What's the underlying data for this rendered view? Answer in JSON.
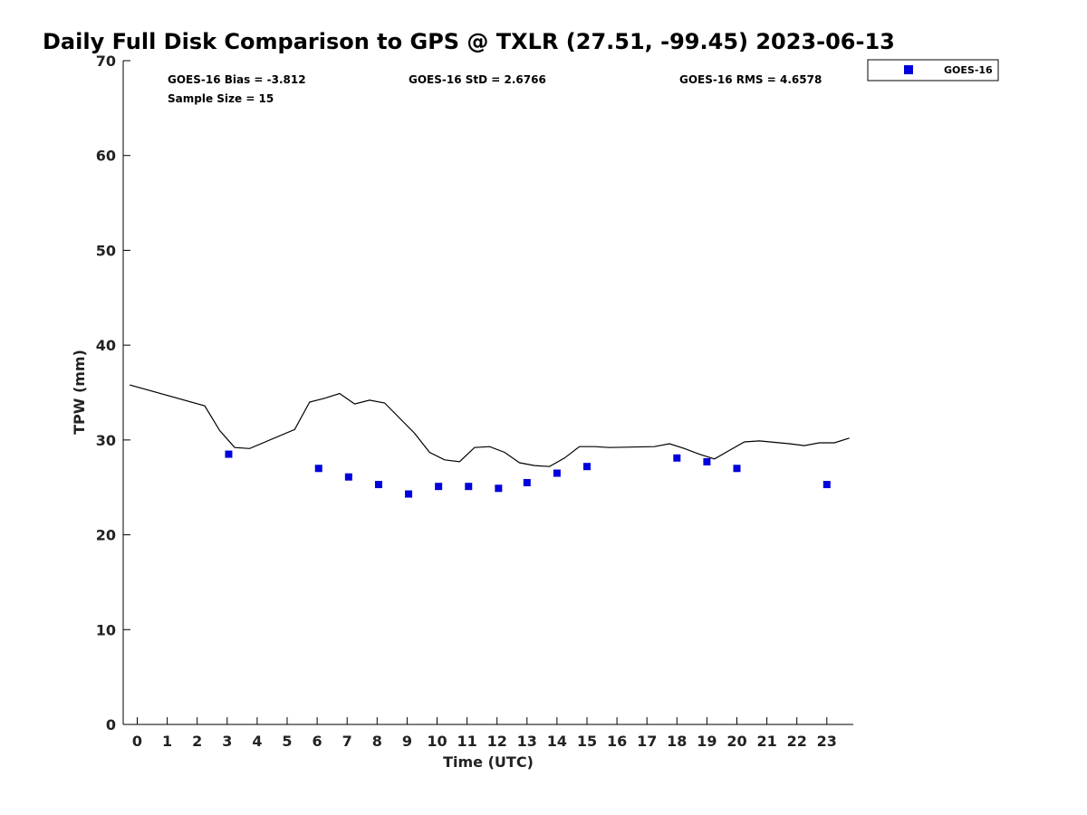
{
  "chart_data": {
    "type": "scatter",
    "title": "Daily Full Disk Comparison to GPS @ TXLR (27.51, -99.45) 2023-06-13",
    "xlabel": "Time (UTC)",
    "ylabel": "TPW (mm)",
    "xlim": [
      -0.5,
      23.75
    ],
    "ylim": [
      0,
      70
    ],
    "x_ticks": [
      0,
      1,
      2,
      3,
      4,
      5,
      6,
      7,
      8,
      9,
      10,
      11,
      12,
      13,
      14,
      15,
      16,
      17,
      18,
      19,
      20,
      21,
      22,
      23
    ],
    "y_ticks": [
      0,
      10,
      20,
      30,
      40,
      50,
      60,
      70
    ],
    "grid": false,
    "legend_position": "top-right",
    "stats": {
      "bias": "GOES-16 Bias = -3.812",
      "std": "GOES-16 StD = 2.6766",
      "rms": "GOES-16 RMS = 4.6578",
      "sample_size": "Sample Size = 15"
    },
    "series": [
      {
        "name": "GOES-16",
        "kind": "scatter",
        "color": "#0000dd",
        "marker": "square",
        "x": [
          3.05,
          6.05,
          7.05,
          8.05,
          9.05,
          10.05,
          11.05,
          12.05,
          13.0,
          14.0,
          15.0,
          18.0,
          19.0,
          20.0,
          23.0
        ],
        "y": [
          28.5,
          27.0,
          26.1,
          25.3,
          24.3,
          25.1,
          25.1,
          24.9,
          25.5,
          26.5,
          27.2,
          28.1,
          27.7,
          27.0,
          25.3
        ]
      },
      {
        "kind": "line",
        "color": "#000000",
        "x": [
          -0.25,
          2.25,
          2.75,
          3.25,
          3.75,
          5.25,
          5.75,
          6.25,
          6.75,
          7.25,
          7.75,
          8.25,
          9.25,
          9.75,
          10.25,
          10.75,
          11.25,
          11.75,
          12.25,
          12.75,
          13.25,
          13.75,
          14.25,
          14.75,
          15.25,
          15.75,
          17.25,
          17.75,
          18.25,
          18.75,
          19.25,
          19.75,
          20.25,
          20.75,
          21.75,
          22.25,
          22.75,
          23.25,
          23.75
        ],
        "y": [
          35.8,
          33.6,
          31.0,
          29.2,
          29.1,
          31.1,
          34.0,
          34.4,
          34.9,
          33.8,
          34.2,
          33.9,
          30.7,
          28.7,
          27.9,
          27.7,
          29.2,
          29.3,
          28.7,
          27.6,
          27.3,
          27.2,
          28.1,
          29.3,
          29.3,
          29.2,
          29.3,
          29.6,
          29.1,
          28.5,
          28.0,
          28.9,
          29.8,
          29.9,
          29.6,
          29.4,
          29.7,
          29.7,
          30.2
        ]
      }
    ]
  }
}
